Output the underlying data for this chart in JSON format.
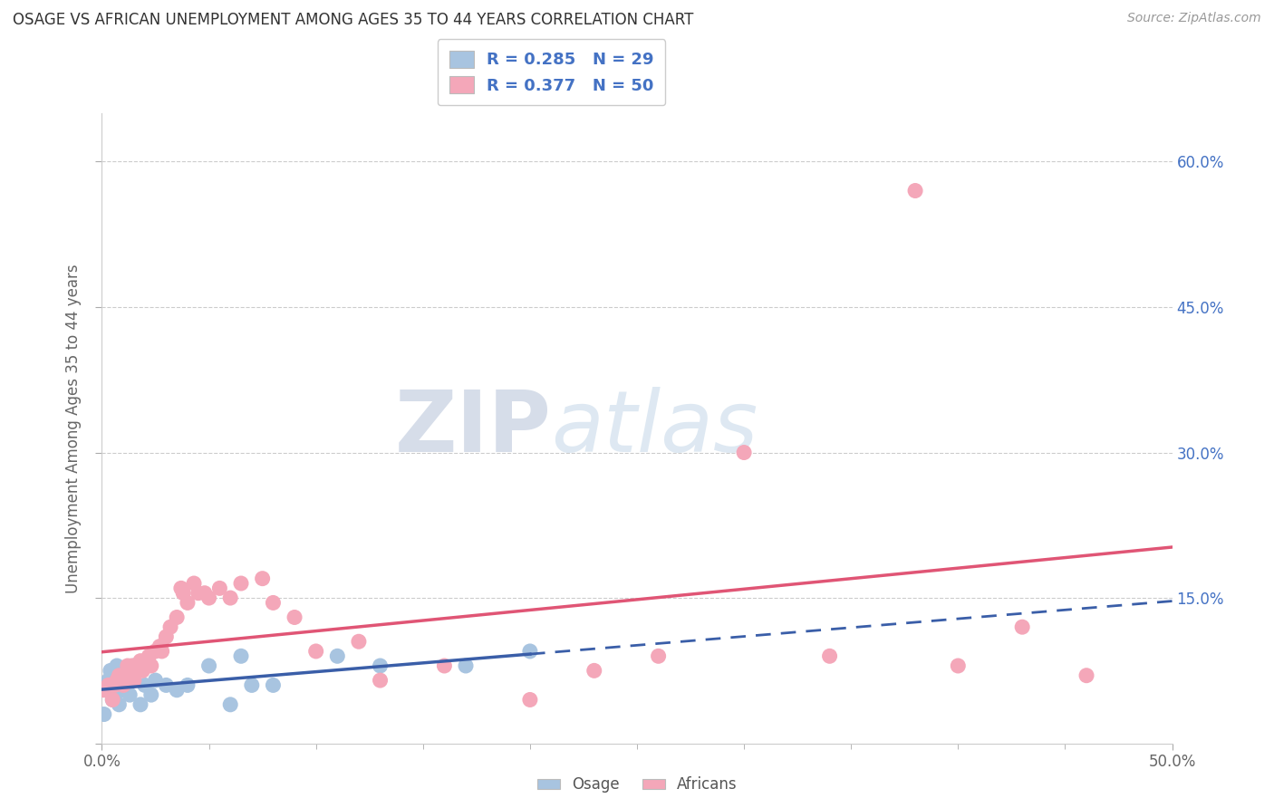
{
  "title": "OSAGE VS AFRICAN UNEMPLOYMENT AMONG AGES 35 TO 44 YEARS CORRELATION CHART",
  "source": "Source: ZipAtlas.com",
  "ylabel": "Unemployment Among Ages 35 to 44 years",
  "xlim": [
    0.0,
    0.5
  ],
  "ylim": [
    0.0,
    0.65
  ],
  "osage_color": "#a8c4e0",
  "african_color": "#f4a7b9",
  "osage_line_color": "#3a5ea8",
  "african_line_color": "#e05575",
  "legend_R_osage": "R = 0.285",
  "legend_N_osage": "N = 29",
  "legend_R_african": "R = 0.377",
  "legend_N_african": "N = 50",
  "osage_x": [
    0.001,
    0.002,
    0.003,
    0.004,
    0.005,
    0.006,
    0.007,
    0.008,
    0.009,
    0.01,
    0.011,
    0.013,
    0.015,
    0.018,
    0.02,
    0.023,
    0.025,
    0.03,
    0.035,
    0.04,
    0.05,
    0.06,
    0.065,
    0.07,
    0.08,
    0.11,
    0.13,
    0.17,
    0.2
  ],
  "osage_y": [
    0.03,
    0.06,
    0.065,
    0.075,
    0.045,
    0.055,
    0.08,
    0.04,
    0.055,
    0.065,
    0.07,
    0.05,
    0.08,
    0.04,
    0.06,
    0.05,
    0.065,
    0.06,
    0.055,
    0.06,
    0.08,
    0.04,
    0.09,
    0.06,
    0.06,
    0.09,
    0.08,
    0.08,
    0.095
  ],
  "african_x": [
    0.001,
    0.003,
    0.005,
    0.006,
    0.007,
    0.008,
    0.009,
    0.01,
    0.012,
    0.013,
    0.014,
    0.015,
    0.016,
    0.018,
    0.019,
    0.02,
    0.022,
    0.023,
    0.025,
    0.027,
    0.028,
    0.03,
    0.032,
    0.035,
    0.037,
    0.038,
    0.04,
    0.043,
    0.045,
    0.048,
    0.05,
    0.055,
    0.06,
    0.065,
    0.075,
    0.08,
    0.09,
    0.1,
    0.12,
    0.13,
    0.16,
    0.2,
    0.23,
    0.26,
    0.3,
    0.34,
    0.38,
    0.4,
    0.43,
    0.46
  ],
  "african_y": [
    0.055,
    0.06,
    0.045,
    0.06,
    0.065,
    0.07,
    0.065,
    0.06,
    0.08,
    0.075,
    0.08,
    0.065,
    0.08,
    0.085,
    0.075,
    0.085,
    0.09,
    0.08,
    0.095,
    0.1,
    0.095,
    0.11,
    0.12,
    0.13,
    0.16,
    0.155,
    0.145,
    0.165,
    0.155,
    0.155,
    0.15,
    0.16,
    0.15,
    0.165,
    0.17,
    0.145,
    0.13,
    0.095,
    0.105,
    0.065,
    0.08,
    0.045,
    0.075,
    0.09,
    0.3,
    0.09,
    0.57,
    0.08,
    0.12,
    0.07
  ],
  "watermark_zip": "ZIP",
  "watermark_atlas": "atlas",
  "background_color": "#ffffff",
  "grid_color": "#cccccc"
}
